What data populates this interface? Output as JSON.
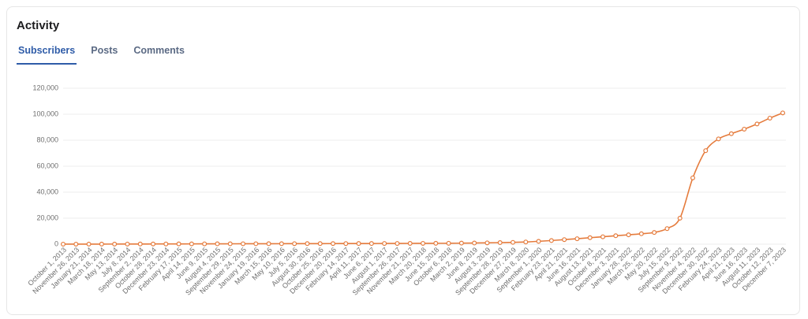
{
  "header": {
    "title": "Activity",
    "tabs": [
      "Subscribers",
      "Posts",
      "Comments"
    ]
  },
  "chart_data": {
    "type": "line",
    "color": "#e57b3c",
    "grid": true,
    "categories": [
      "October 1, 2013",
      "November 26, 2013",
      "January 21, 2014",
      "March 18, 2014",
      "May 13, 2014",
      "July 8, 2014",
      "September 2, 2014",
      "October 28, 2014",
      "December 23, 2014",
      "February 17, 2015",
      "April 14, 2015",
      "June 9, 2015",
      "August 4, 2015",
      "September 29, 2015",
      "November 24, 2015",
      "January 19, 2016",
      "March 15, 2016",
      "May 10, 2016",
      "July 5, 2016",
      "August 30, 2016",
      "October 25, 2016",
      "December 20, 2016",
      "February 14, 2017",
      "April 11, 2017",
      "June 6, 2017",
      "August 1, 2017",
      "September 26, 2017",
      "November 21, 2017",
      "March 20, 2018",
      "June 15, 2018",
      "October 6, 2018",
      "March 2, 2019",
      "June 8, 2019",
      "August 3, 2019",
      "September 28, 2019",
      "December 27, 2019",
      "March 8, 2020",
      "September 1, 2020",
      "February 23, 2021",
      "April 21, 2021",
      "June 16, 2021",
      "August 13, 2021",
      "October 8, 2021",
      "December 3, 2021",
      "January 28, 2022",
      "March 25, 2022",
      "May 20, 2022",
      "July 15, 2022",
      "September 9, 2022",
      "November 4, 2022",
      "December 30, 2022",
      "February 24, 2023",
      "April 21, 2023",
      "June 16, 2023",
      "August 11, 2023",
      "October 12, 2023",
      "December 7, 2023"
    ],
    "values": [
      10,
      20,
      40,
      60,
      80,
      100,
      120,
      150,
      180,
      200,
      220,
      250,
      280,
      300,
      320,
      340,
      360,
      380,
      400,
      420,
      440,
      460,
      480,
      500,
      520,
      540,
      560,
      600,
      640,
      680,
      700,
      800,
      900,
      1000,
      1200,
      1400,
      1700,
      2200,
      2800,
      3500,
      4200,
      5000,
      5700,
      6500,
      7200,
      8000,
      9000,
      12000,
      20000,
      51000,
      72000,
      81000,
      85000,
      88500,
      92500,
      97000,
      101000
    ],
    "ylim": [
      0,
      120000
    ],
    "yticks": [
      0,
      {
        "value": 20000,
        "label": "20,000"
      },
      {
        "value": 40000,
        "label": "40,000"
      },
      {
        "value": 60000,
        "label": "60,000"
      },
      {
        "value": 80000,
        "label": "80,000"
      },
      {
        "value": 100000,
        "label": "100,000"
      },
      {
        "value": 120000,
        "label": "120,000"
      }
    ]
  }
}
